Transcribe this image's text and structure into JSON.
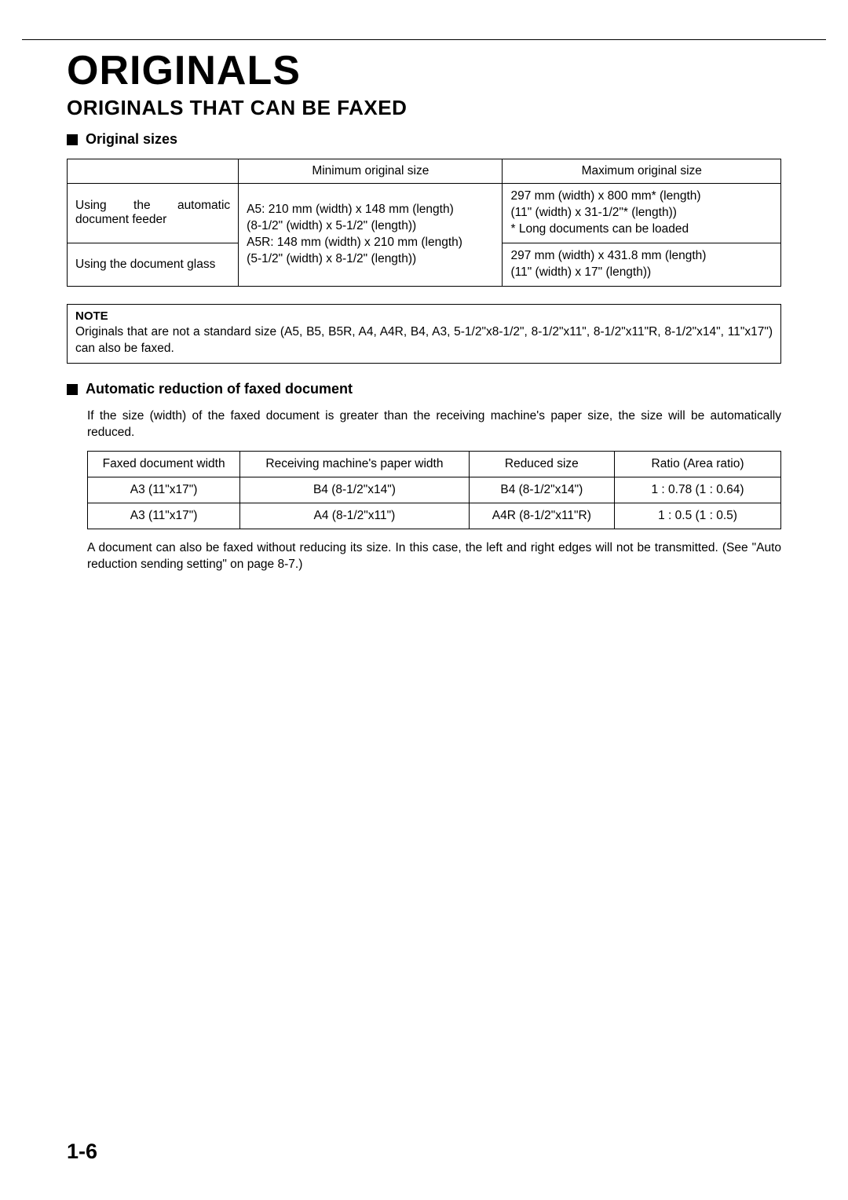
{
  "heading": {
    "h1": "ORIGINALS",
    "h2": "ORIGINALS THAT CAN BE FAXED"
  },
  "section1": {
    "title": "Original sizes",
    "table": {
      "headers": {
        "min": "Minimum original size",
        "max": "Maximum original size"
      },
      "rows": [
        {
          "label_line1": "Using the automatic",
          "label_line2": "document feeder",
          "min": "A5: 210 mm (width) x 148 mm (length)\n(8-1/2\" (width) x 5-1/2\" (length))\nA5R: 148 mm (width) x 210 mm (length)\n(5-1/2\" (width) x 8-1/2\" (length))",
          "max": "297 mm (width) x 800 mm* (length)\n(11\" (width) x 31-1/2\"* (length))\n* Long documents can be loaded"
        },
        {
          "label": "Using the document glass",
          "max": "297 mm (width) x 431.8 mm (length)\n(11\" (width) x 17\"  (length))"
        }
      ]
    }
  },
  "note": {
    "title": "NOTE",
    "text": "Originals that are not a standard size (A5, B5, B5R, A4, A4R, B4, A3, 5-1/2\"x8-1/2\", 8-1/2\"x11\", 8-1/2\"x11\"R, 8-1/2\"x14\", 11\"x17\") can also be faxed."
  },
  "section2": {
    "title": "Automatic reduction of faxed document",
    "intro": "If the size (width) of the faxed document is greater than the receiving machine's paper size, the size will be automatically reduced.",
    "table": {
      "headers": {
        "c1": "Faxed document width",
        "c2": "Receiving machine's paper width",
        "c3": "Reduced size",
        "c4": "Ratio (Area ratio)"
      },
      "rows": [
        {
          "c1": "A3 (11\"x17\")",
          "c2": "B4 (8-1/2\"x14\")",
          "c3": "B4 (8-1/2\"x14\")",
          "c4": "1 : 0.78 (1 : 0.64)"
        },
        {
          "c1": "A3 (11\"x17\")",
          "c2": "A4 (8-1/2\"x11\")",
          "c3": "A4R (8-1/2\"x11\"R)",
          "c4": "1 : 0.5 (1 : 0.5)"
        }
      ]
    },
    "outro": "A document can also be faxed without reducing its size. In this case, the left and right edges will not be transmitted. (See \"Auto reduction sending setting\" on page 8-7.)"
  },
  "page_number": "1-6"
}
